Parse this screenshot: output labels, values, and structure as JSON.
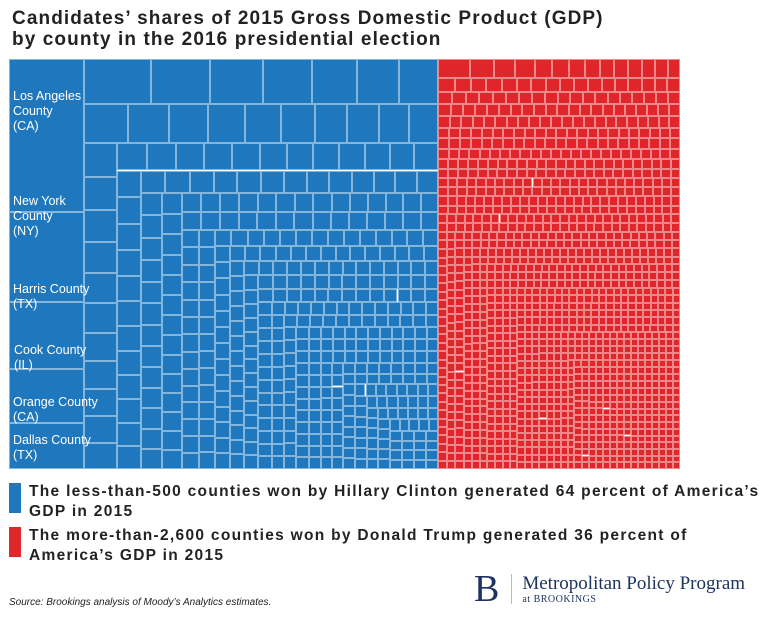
{
  "title_line1": "Candidates’ shares of 2015 Gross Domestic Product (GDP)",
  "title_line2": "by county in the 2016 presidential election",
  "chart_data": {
    "type": "treemap",
    "groups": [
      {
        "name": "Hillary Clinton",
        "color": "#1f78bd",
        "share_percent": 64,
        "counties": "less-than-500"
      },
      {
        "name": "Donald Trump",
        "color": "#e0262b",
        "share_percent": 36,
        "counties": "more-than-2,600"
      }
    ],
    "labeled_counties": [
      {
        "label": "Los Angeles County (CA)",
        "lines": [
          "Los Angeles",
          "County",
          "(CA)"
        ]
      },
      {
        "label": "New York County (NY)",
        "lines": [
          "New York",
          "County",
          "(NY)"
        ]
      },
      {
        "label": "Harris County (TX)",
        "lines": [
          "Harris County",
          "(TX)"
        ]
      },
      {
        "label": "Cook County (IL)",
        "lines": [
          "Cook County",
          "(IL)"
        ]
      },
      {
        "label": "Orange County (CA)",
        "lines": [
          "Orange County",
          "(CA)"
        ]
      },
      {
        "label": "Dallas County (TX)",
        "lines": [
          "Dallas County",
          "(TX)"
        ]
      }
    ]
  },
  "legend": [
    {
      "text": "The less-than-500 counties won by Hillary Clinton generated 64 percent of America’s GDP in 2015",
      "color": "#1f78bd"
    },
    {
      "text": "The more-than-2,600 counties won by Donald Trump generated 36 percent of America’s GDP in 2015",
      "color": "#e0262b"
    }
  ],
  "source": "Source: Brookings analysis of Moody’s Analytics estimates.",
  "logo": {
    "letter": "B",
    "name": "Metropolitan Policy Program",
    "sub": "at BROOKINGS"
  }
}
